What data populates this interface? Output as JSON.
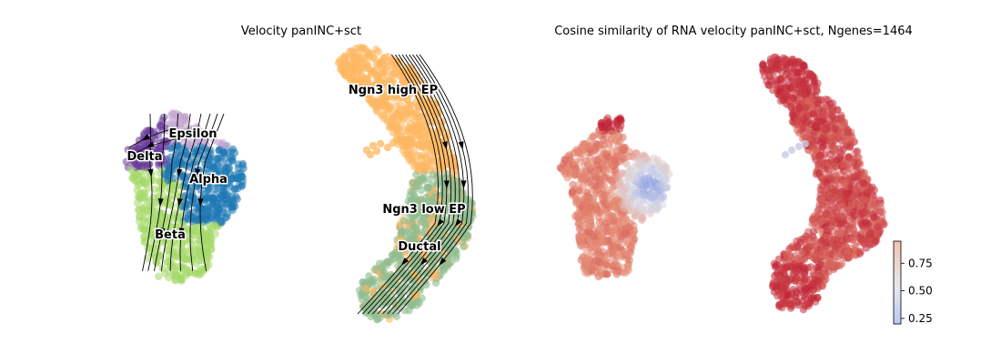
{
  "chart_data": [
    {
      "type": "scatter",
      "subtype": "velocity-stream-embedding",
      "title": "Velocity panINC+sct",
      "xlabel": "",
      "ylabel": "",
      "axes_visible": false,
      "grid": false,
      "stream_arrows": true,
      "clusters": [
        {
          "name": "Delta",
          "color": "#6a3d9a"
        },
        {
          "name": "Epsilon",
          "color": "#c2a5cf"
        },
        {
          "name": "Alpha",
          "color": "#1f78b4"
        },
        {
          "name": "Beta",
          "color": "#a6d96a"
        },
        {
          "name": "Ngn3 high EP",
          "color": "#fdb863"
        },
        {
          "name": "Ngn3 low EP",
          "color": "#8fbc8f"
        },
        {
          "name": "Ductal",
          "color": "#8fbc8f"
        }
      ]
    },
    {
      "type": "scatter",
      "subtype": "embedding-colored-by-value",
      "title": "Cosine similarity of RNA velocity panINC+sct, Ngenes=1464",
      "xlabel": "",
      "ylabel": "",
      "axes_visible": false,
      "grid": false,
      "colormap": "coolwarm",
      "colorbar": {
        "ticks": [
          "0.25",
          "0.50",
          "0.75"
        ],
        "tick_values": [
          0.25,
          0.5,
          0.75
        ],
        "range": [
          0.2,
          0.95
        ],
        "placement": "bottom-right"
      }
    }
  ]
}
